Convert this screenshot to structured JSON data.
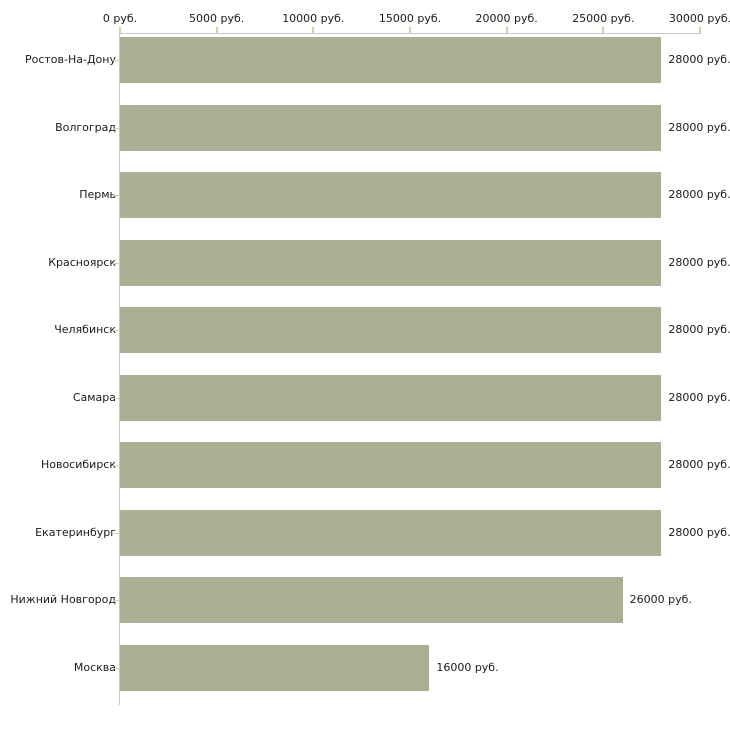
{
  "chart_data": {
    "type": "bar",
    "orientation": "horizontal",
    "categories": [
      "Ростов-На-Дону",
      "Волгоград",
      "Пермь",
      "Красноярск",
      "Челябинск",
      "Самара",
      "Новосибирск",
      "Екатеринбург",
      "Нижний Новгород",
      "Москва"
    ],
    "values": [
      28000,
      28000,
      28000,
      28000,
      28000,
      28000,
      28000,
      28000,
      26000,
      16000
    ],
    "value_labels": [
      "28000 руб.",
      "28000 руб.",
      "28000 руб.",
      "28000 руб.",
      "28000 руб.",
      "28000 руб.",
      "28000 руб.",
      "28000 руб.",
      "26000 руб.",
      "16000 руб."
    ],
    "x_ticks": [
      0,
      5000,
      10000,
      15000,
      20000,
      25000,
      30000
    ],
    "x_tick_labels": [
      "0 руб.",
      "5000 руб.",
      "10000 руб.",
      "15000 руб.",
      "20000 руб.",
      "25000 руб.",
      "30000 руб."
    ],
    "xlim": [
      0,
      30000
    ],
    "unit": "руб.",
    "grid": false,
    "legend": false,
    "colors": {
      "bar": "#abaf94",
      "axis": "#c8c8c8",
      "tick": "#d2d2ac",
      "text": "#1a1a1a",
      "background": "#ffffff"
    }
  }
}
